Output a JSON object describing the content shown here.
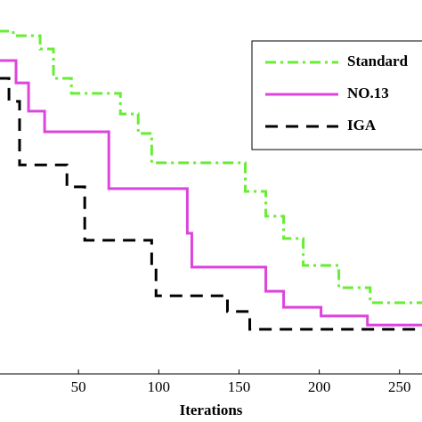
{
  "chart_data": {
    "type": "line",
    "step": true,
    "xlabel": "Iterations",
    "xlim": [
      0,
      264
    ],
    "ylim": [
      0,
      100
    ],
    "xticks": [
      50,
      100,
      150,
      200,
      250
    ],
    "legend": "upper right",
    "series": [
      {
        "name": "Standard",
        "color": "#66ee33",
        "dash": "12 5 3 5",
        "x": [
          0,
          9.4,
          26.1,
          34.4,
          45.6,
          76.1,
          87.2,
          95.6,
          153.9,
          166.7,
          177.8,
          190,
          212.2,
          231.7
        ],
        "values": [
          98.2,
          96.9,
          93.1,
          84.7,
          80.4,
          74.5,
          68.9,
          60.5,
          52.3,
          45.2,
          38.8,
          31.1,
          24.7,
          20.4
        ]
      },
      {
        "name": "NO.13",
        "color": "#dd44dd",
        "dash": "none",
        "x": [
          0,
          11.1,
          18.9,
          28.9,
          68.9,
          117.8,
          120.6,
          166.7,
          177.8,
          201.1,
          230
        ],
        "values": [
          89.8,
          83.4,
          75.3,
          69.4,
          53.1,
          40.3,
          30.6,
          23.7,
          19.1,
          16.6,
          14.0
        ]
      },
      {
        "name": "IGA",
        "color": "#000000",
        "dash": "14 9",
        "x": [
          0,
          6.7,
          13.3,
          42.8,
          53.9,
          95.6,
          98.3,
          142.8,
          156.7
        ],
        "values": [
          84.7,
          78.1,
          59.9,
          53.6,
          38.3,
          30.6,
          22.4,
          17.9,
          12.8
        ]
      }
    ]
  }
}
